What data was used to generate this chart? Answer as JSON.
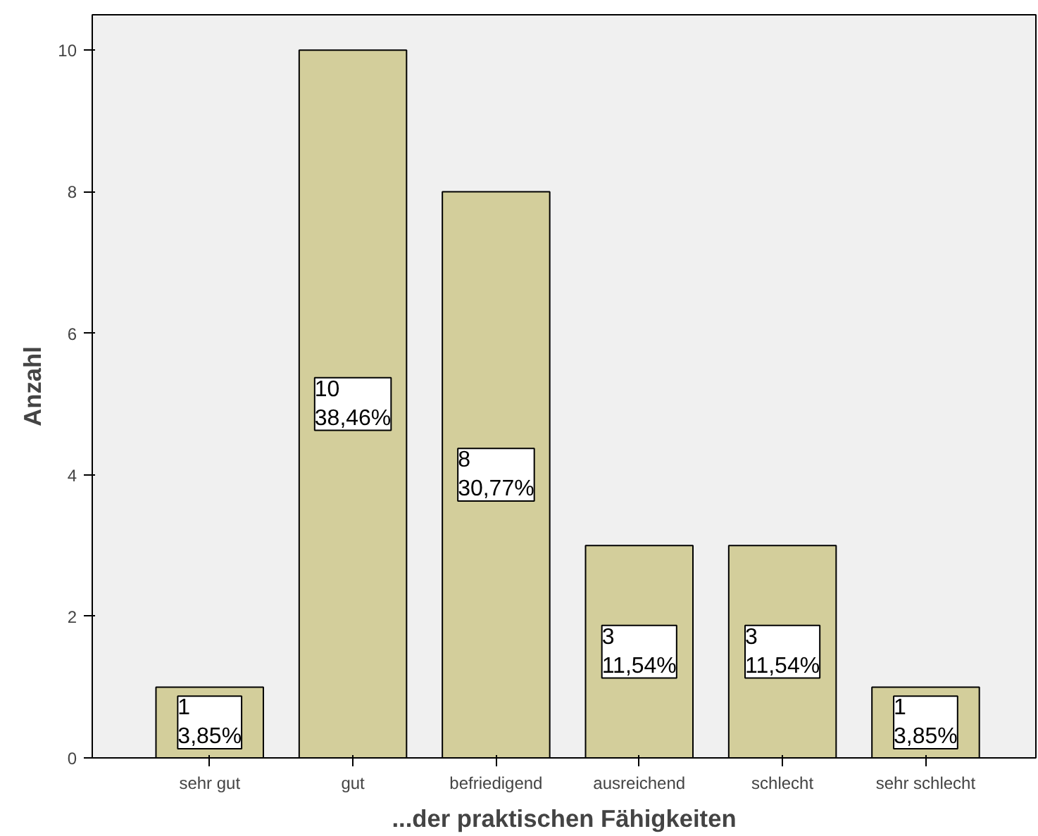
{
  "chart_data": {
    "type": "bar",
    "xlabel": "...der praktischen Fähigkeiten",
    "ylabel": "Anzahl",
    "categories": [
      "sehr gut",
      "gut",
      "befriedigend",
      "ausreichend",
      "schlecht",
      "sehr schlecht"
    ],
    "values": [
      1,
      10,
      8,
      3,
      3,
      1
    ],
    "value_labels": [
      "1\n3,85%",
      "10\n38,46%",
      "8\n30,77%",
      "3\n11,54%",
      "3\n11,54%",
      "1\n3,85%"
    ],
    "color": "#d3ce9b",
    "ylim": [
      0,
      10.5
    ],
    "yticks": [
      0,
      2,
      4,
      6,
      8,
      10
    ],
    "grid": false
  }
}
